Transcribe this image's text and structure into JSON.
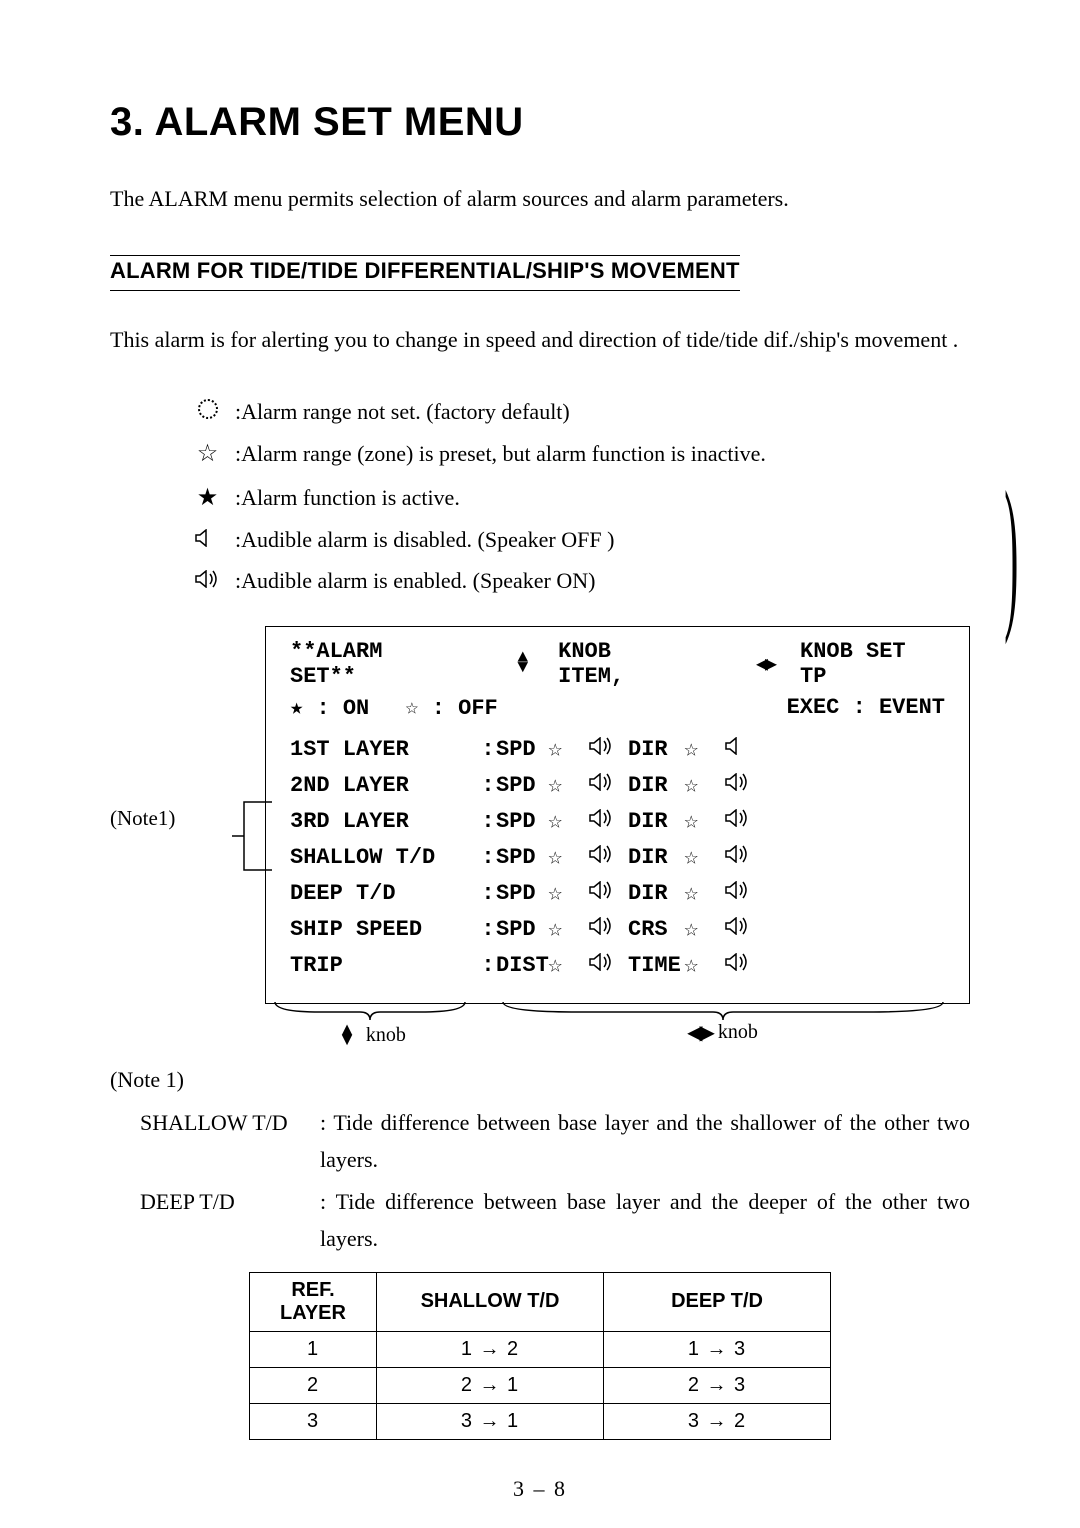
{
  "title": "3. ALARM SET MENU",
  "intro": "The ALARM menu permits selection of alarm sources and alarm parameters.",
  "section_header": "ALARM FOR TIDE/TIDE DIFFERENTIAL/SHIP'S MOVEMENT",
  "description": "This alarm is for alerting you to change in speed and direction of tide/tide dif./ship's movement .",
  "legend": {
    "items": [
      {
        "sym": "dotted-circle",
        "text": ":Alarm range not set.  (factory default)"
      },
      {
        "sym": "star-hollow",
        "text": ":Alarm range (zone) is preset, but alarm function is inactive."
      },
      {
        "sym": "star-filled",
        "text": ":Alarm function is active."
      },
      {
        "sym": "speaker-off",
        "text": ":Audible alarm is disabled.  (Speaker OFF )"
      },
      {
        "sym": "speaker-on",
        "text": ":Audible alarm is enabled.  (Speaker ON)"
      }
    ]
  },
  "panel": {
    "header_title": "**ALARM SET**",
    "knob_item": "KNOB ITEM,",
    "knob_set": "KNOB SET TP",
    "on_label": "★ : ON",
    "off_label": "☆ : OFF",
    "exec_label": "EXEC : EVENT",
    "rows": [
      {
        "label": "1ST LAYER",
        "p1": "SPD",
        "star1": "☆",
        "spk1": "on",
        "p2": "DIR",
        "star2": "☆",
        "spk2": "off"
      },
      {
        "label": "2ND LAYER",
        "p1": "SPD",
        "star1": "☆",
        "spk1": "on",
        "p2": "DIR",
        "star2": "☆",
        "spk2": "on"
      },
      {
        "label": "3RD LAYER",
        "p1": "SPD",
        "star1": "☆",
        "spk1": "on",
        "p2": "DIR",
        "star2": "☆",
        "spk2": "on"
      },
      {
        "label": "SHALLOW T/D",
        "p1": "SPD",
        "star1": "☆",
        "spk1": "on",
        "p2": "DIR",
        "star2": "☆",
        "spk2": "on"
      },
      {
        "label": "DEEP T/D",
        "p1": "SPD",
        "star1": "☆",
        "spk1": "on",
        "p2": "DIR",
        "star2": "☆",
        "spk2": "on"
      },
      {
        "label": "SHIP SPEED",
        "p1": "SPD",
        "star1": "☆",
        "spk1": "on",
        "p2": "CRS",
        "star2": "☆",
        "spk2": "on"
      },
      {
        "label": "TRIP",
        "p1": "DIST",
        "star1": "☆",
        "spk1": "on",
        "p2": "TIME",
        "star2": "☆",
        "spk2": "on"
      }
    ]
  },
  "note1_side": "(Note1)",
  "underbrace": {
    "left_label": "knob",
    "right_label": "knob"
  },
  "notes": {
    "title": "(Note 1)",
    "defs": [
      {
        "key": "SHALLOW T/D",
        "sep": ":",
        "val": "Tide difference between base layer and the shallower of the other two layers."
      },
      {
        "key": "DEEP T/D",
        "sep": ":",
        "val": "Tide difference between base layer and the deeper of the other two layers."
      }
    ]
  },
  "table": {
    "headers": [
      "REF. LAYER",
      "SHALLOW T/D",
      "DEEP T/D"
    ],
    "rows": [
      [
        "1",
        "1 → 2",
        "1 → 3"
      ],
      [
        "2",
        "2 → 1",
        "2 → 3"
      ],
      [
        "3",
        "3 → 1",
        "3 → 2"
      ]
    ],
    "col_widths": [
      "90px",
      "190px",
      "190px"
    ]
  },
  "page_number": "3 – 8",
  "colors": {
    "text": "#000000",
    "bg": "#ffffff",
    "border": "#000000"
  }
}
